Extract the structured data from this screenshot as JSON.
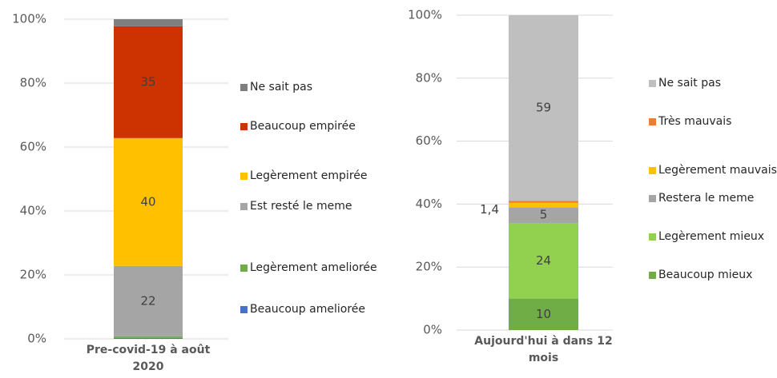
{
  "chart_data": [
    {
      "type": "bar",
      "stacked": true,
      "categories": [
        "Pre-covid-19 à août 2020"
      ],
      "ylim": [
        0,
        100
      ],
      "yticks": [
        {
          "value": 0,
          "label": "0%"
        },
        {
          "value": 20,
          "label": "20%"
        },
        {
          "value": 40,
          "label": "40%"
        },
        {
          "value": 60,
          "label": "60%"
        },
        {
          "value": 80,
          "label": "80%"
        },
        {
          "value": 100,
          "label": "100%"
        }
      ],
      "grid": true,
      "series": [
        {
          "name": "Beaucoup ameliorée",
          "color": "#4472c4",
          "values": [
            0.3
          ]
        },
        {
          "name": "Legèrement ameliorée",
          "color": "#70ad47",
          "values": [
            0.5
          ]
        },
        {
          "name": "Est resté le meme",
          "color": "#a5a5a5",
          "values": [
            22
          ]
        },
        {
          "name": "Legèrement empirée",
          "color": "#ffc000",
          "values": [
            40
          ]
        },
        {
          "name": "Beaucoup empirée",
          "color": "#cc3300",
          "values": [
            35
          ]
        },
        {
          "name": "Ne sait pas",
          "color": "#7f7f7f",
          "values": [
            2.2
          ]
        }
      ]
    },
    {
      "type": "bar",
      "stacked": true,
      "categories": [
        "Aujourd'hui à dans 12 mois"
      ],
      "ylim": [
        0,
        100
      ],
      "yticks": [
        {
          "value": 0,
          "label": "0%"
        },
        {
          "value": 20,
          "label": "20%"
        },
        {
          "value": 40,
          "label": "40%"
        },
        {
          "value": 60,
          "label": "60%"
        },
        {
          "value": 80,
          "label": "80%"
        },
        {
          "value": 100,
          "label": "100%"
        }
      ],
      "grid": true,
      "series": [
        {
          "name": "Beaucoup mieux",
          "color": "#70ad47",
          "values": [
            10
          ]
        },
        {
          "name": "Legèrement mieux",
          "color": "#92d050",
          "values": [
            24
          ]
        },
        {
          "name": "Restera le meme",
          "color": "#a5a5a5",
          "values": [
            5
          ]
        },
        {
          "name": "Legèrement mauvais",
          "color": "#ffc000",
          "values": [
            1.4
          ],
          "value_labels": [
            "1,4"
          ]
        },
        {
          "name": "Très mauvais",
          "color": "#ed7d31",
          "values": [
            0.6
          ]
        },
        {
          "name": "Ne sait pas",
          "color": "#bfbfbf",
          "values": [
            59
          ]
        }
      ]
    }
  ]
}
